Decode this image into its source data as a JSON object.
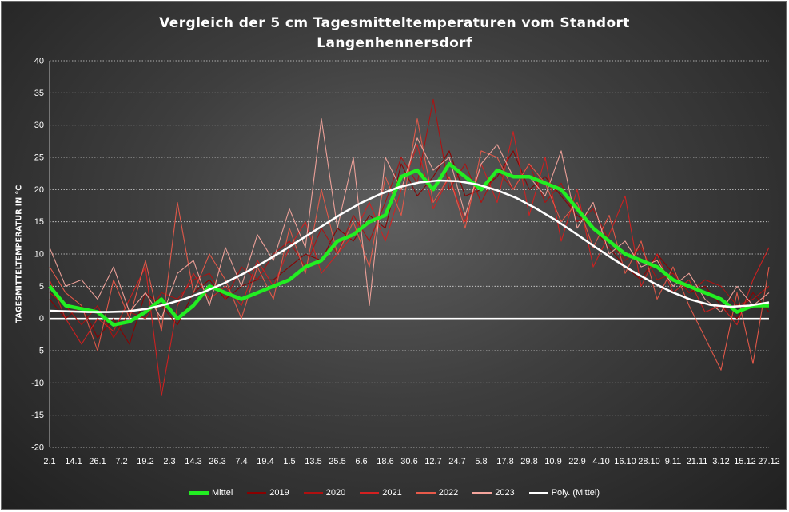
{
  "chart_data": {
    "type": "line",
    "title": "Vergleich  der 5 cm Tagesmitteltemperaturen  vom Standort",
    "subtitle": "Langenhennersdorf",
    "ylabel": "TAGESMITTELTEMPERATUR IN °C",
    "xlabel": "",
    "ylim": [
      -20,
      40
    ],
    "yticks": [
      -20,
      -15,
      -10,
      -5,
      0,
      5,
      10,
      15,
      20,
      25,
      30,
      35,
      40
    ],
    "x_tick_labels": [
      "2.1",
      "14.1",
      "26.1",
      "7.2",
      "19.2",
      "2.3",
      "14.3",
      "26.3",
      "7.4",
      "19.4",
      "1.5",
      "13.5",
      "25.5",
      "6.6",
      "18.6",
      "30.6",
      "12.7",
      "24.7",
      "5.8",
      "17.8",
      "29.8",
      "10.9",
      "22.9",
      "4.10",
      "16.10",
      "28.10",
      "9.11",
      "21.11",
      "3.12",
      "15.12",
      "27.12"
    ],
    "grid": true,
    "legend_position": "bottom",
    "series": [
      {
        "name": "Mittel",
        "color": "#22ee22",
        "values": [
          5,
          2,
          1.5,
          1,
          -1,
          -0.5,
          1,
          3,
          0,
          2,
          5,
          4,
          3,
          4,
          5,
          6,
          8,
          9,
          12,
          13,
          15,
          16,
          22,
          23,
          20,
          24,
          22,
          20,
          23,
          22,
          22,
          21,
          20,
          17,
          14,
          12,
          10,
          9,
          8,
          6,
          5,
          4,
          3,
          1,
          2,
          2
        ]
      },
      {
        "name": "2019",
        "color": "#8b0000",
        "values": [
          3,
          0,
          2,
          -3,
          0,
          -4,
          4,
          2,
          -1,
          4,
          6,
          3,
          5,
          6,
          6,
          8,
          10,
          9,
          14,
          12,
          16,
          14,
          24,
          19,
          22,
          26,
          19,
          20,
          22,
          26,
          20,
          22,
          19,
          16,
          14,
          11,
          8,
          6,
          10,
          7,
          4,
          5,
          2,
          0,
          4,
          1
        ]
      },
      {
        "name": "2020",
        "color": "#b01010",
        "values": [
          4,
          2,
          -1,
          2,
          -3,
          1,
          0,
          4,
          3,
          6,
          7,
          3,
          8,
          6,
          10,
          12,
          8,
          14,
          10,
          16,
          12,
          18,
          25,
          21,
          34,
          20,
          24,
          18,
          23,
          20,
          24,
          18,
          21,
          15,
          17,
          12,
          9,
          11,
          6,
          7,
          4,
          6,
          5,
          2,
          3,
          5
        ]
      },
      {
        "name": "2021",
        "color": "#d42020",
        "values": [
          6,
          0,
          -4,
          0,
          -2,
          3,
          8,
          -12,
          2,
          7,
          3,
          5,
          2,
          9,
          5,
          11,
          15,
          7,
          10,
          13,
          18,
          12,
          20,
          27,
          17,
          22,
          15,
          24,
          18,
          29,
          16,
          25,
          12,
          20,
          8,
          13,
          19,
          5,
          10,
          4,
          6,
          1,
          2,
          -1,
          6,
          11
        ]
      },
      {
        "name": "2022",
        "color": "#e85a4a",
        "values": [
          8,
          4,
          2,
          -5,
          6,
          0,
          9,
          -2,
          18,
          4,
          10,
          6,
          0,
          8,
          3,
          14,
          7,
          20,
          10,
          15,
          8,
          22,
          16,
          31,
          18,
          22,
          14,
          26,
          25,
          20,
          24,
          21,
          15,
          18,
          11,
          16,
          7,
          12,
          3,
          8,
          2,
          -3,
          -8,
          4,
          -7,
          8
        ]
      },
      {
        "name": "2023",
        "color": "#f4a49c",
        "values": [
          11,
          5,
          6,
          3,
          8,
          1,
          4,
          0,
          7,
          9,
          2,
          11,
          5,
          13,
          9,
          17,
          11,
          31,
          14,
          25,
          2,
          25,
          20,
          28,
          23,
          25,
          16,
          24,
          27,
          22,
          22,
          19,
          26,
          14,
          18,
          10,
          12,
          8,
          9,
          5,
          7,
          3,
          1,
          5,
          2,
          4
        ]
      },
      {
        "name": "Poly. (Mittel)",
        "color": "#ffffff",
        "values": [
          1.2,
          1.1,
          1.0,
          1.0,
          1.1,
          1.5,
          2.2,
          3.1,
          4.2,
          5.5,
          7.0,
          8.7,
          10.5,
          12.4,
          14.3,
          16.2,
          17.9,
          19.3,
          20.4,
          21.1,
          21.4,
          21.3,
          20.8,
          19.9,
          18.7,
          17.1,
          15.3,
          13.3,
          11.2,
          9.2,
          7.3,
          5.6,
          4.1,
          2.9,
          2.1,
          1.8,
          2.0,
          2.5
        ]
      }
    ],
    "series_x_fraction_note": ""
  }
}
